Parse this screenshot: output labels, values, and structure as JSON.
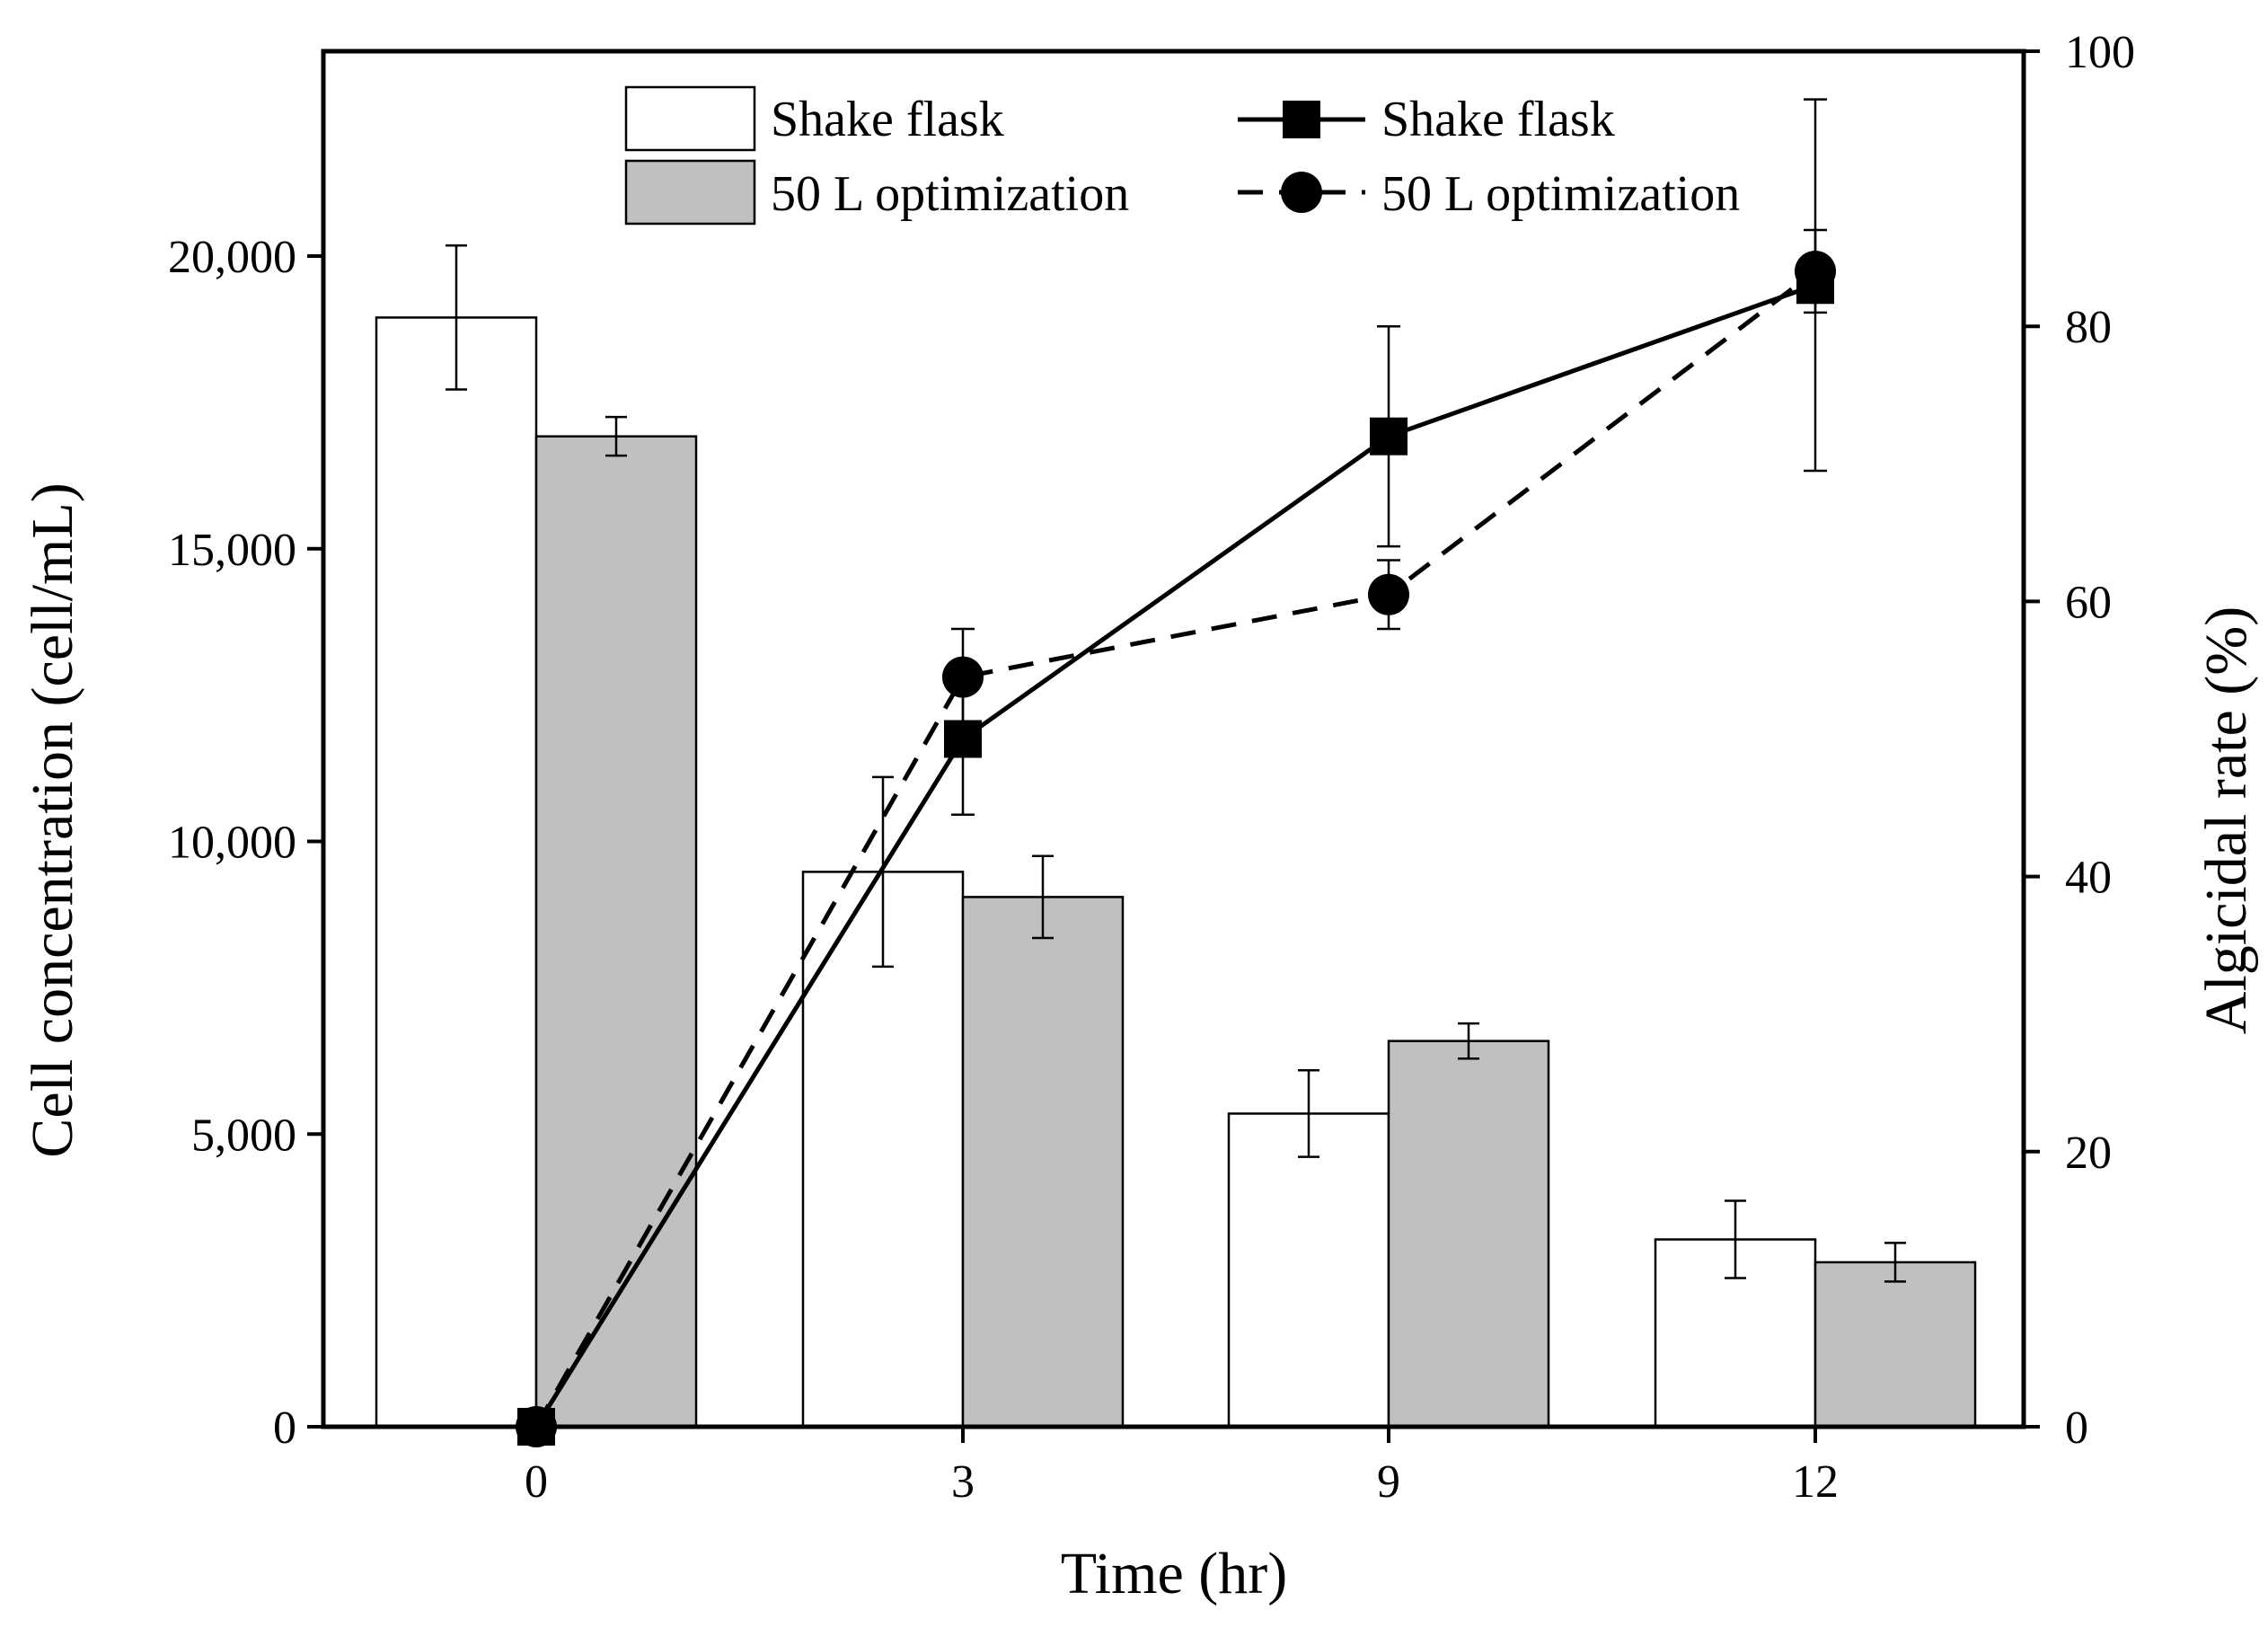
{
  "chart_data": {
    "type": "bar+line",
    "title": "",
    "xlabel": "Time (hr)",
    "ylabel_left": "Cell concentration (cell/mL)",
    "ylabel_right": "Algicidal rate (%)",
    "categories": [
      "0",
      "3",
      "9",
      "12"
    ],
    "ylim_left": [
      0,
      23500
    ],
    "yticks_left": [
      0,
      5000,
      10000,
      15000,
      20000
    ],
    "ytick_labels_left": [
      "0",
      "5,000",
      "10,000",
      "15,000",
      "20,000"
    ],
    "ylim_right": [
      0,
      100
    ],
    "yticks_right": [
      0,
      20,
      40,
      60,
      80,
      100
    ],
    "ytick_labels_right": [
      "0",
      "20",
      "40",
      "60",
      "80",
      "100"
    ],
    "bar_series": [
      {
        "name": "Shake flask",
        "values": [
          18950,
          9480,
          5350,
          3200
        ],
        "errors": [
          1230,
          1620,
          740,
          660
        ],
        "color": "#ffffff"
      },
      {
        "name": "50 L optimization",
        "values": [
          16920,
          9050,
          6590,
          2810
        ],
        "errors": [
          330,
          700,
          300,
          330
        ],
        "color": "#c0c0c0"
      }
    ],
    "line_series": [
      {
        "name": "Shake flask",
        "marker": "square",
        "dash": "solid",
        "values": [
          0,
          50,
          72,
          83
        ],
        "errors": [
          0,
          5.5,
          8,
          13.5
        ]
      },
      {
        "name": "50 L optimization",
        "marker": "circle",
        "dash": "dashed",
        "values": [
          0,
          54.5,
          60.5,
          84
        ],
        "errors": [
          0,
          3.5,
          2.5,
          3
        ]
      }
    ],
    "legend": {
      "bars": [
        "Shake flask",
        "50 L optimization"
      ],
      "lines": [
        "Shake flask",
        "50 L optimization"
      ],
      "position": "top"
    }
  }
}
